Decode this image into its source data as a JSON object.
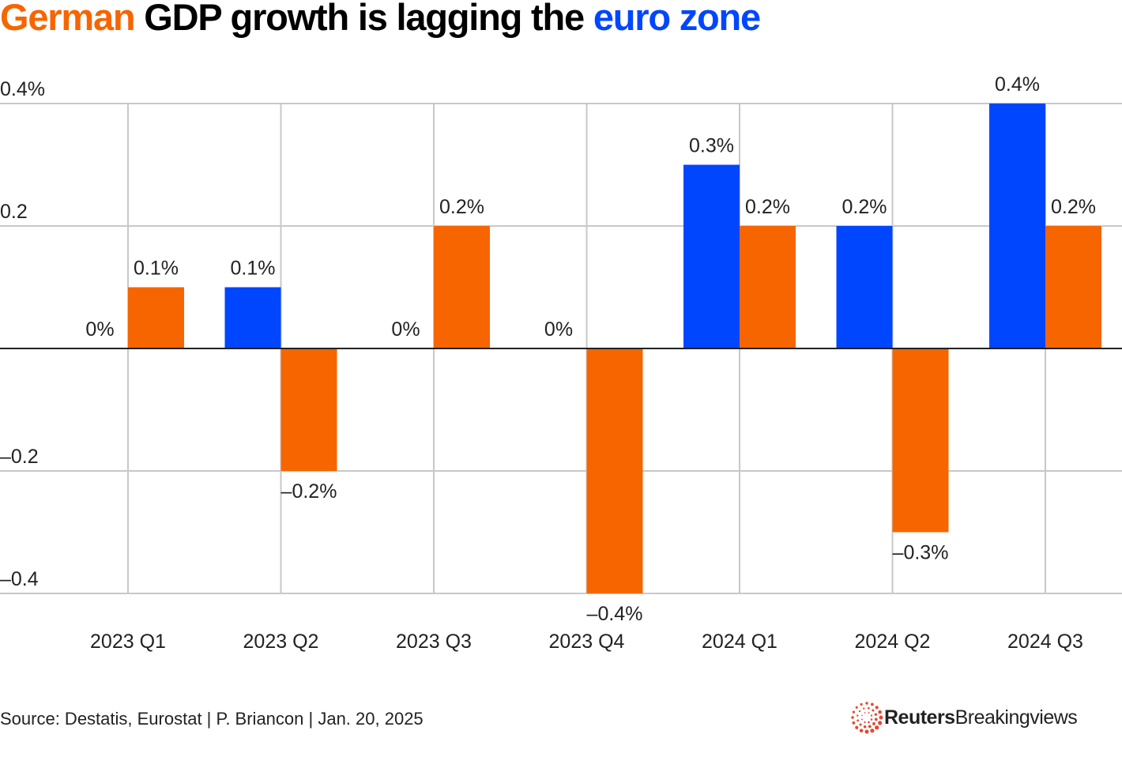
{
  "title": {
    "part1": "German",
    "part2": " GDP growth is lagging the ",
    "part3": "euro zone"
  },
  "colors": {
    "germany": "#f76501",
    "euro_zone": "#0046ff",
    "grid": "#c8c8c8",
    "zero_line": "#222222",
    "logo": "#e8452c"
  },
  "chart_data": {
    "type": "bar",
    "title": "German GDP growth is lagging the euro zone",
    "xlabel": "",
    "ylabel": "",
    "categories": [
      "2023 Q1",
      "2023 Q2",
      "2023 Q3",
      "2023 Q4",
      "2024 Q1",
      "2024 Q2",
      "2024 Q3"
    ],
    "series": [
      {
        "name": "Euro zone",
        "color": "#0046ff",
        "values": [
          0,
          0.1,
          0,
          0,
          0.3,
          0.2,
          0.4
        ],
        "labels": [
          "0%",
          "0.1%",
          "0%",
          "0%",
          "0.3%",
          "0.2%",
          "0.4%"
        ]
      },
      {
        "name": "Germany",
        "color": "#f76501",
        "values": [
          0.1,
          -0.2,
          0.2,
          -0.4,
          0.2,
          -0.3,
          0.2
        ],
        "labels": [
          "0.1%",
          "–0.2%",
          "0.2%",
          "–0.4%",
          "0.2%",
          "–0.3%",
          "0.2%"
        ]
      }
    ],
    "ylim": [
      -0.4,
      0.4
    ],
    "yticks": [
      0.4,
      0.2,
      -0.2,
      -0.4
    ],
    "ytick_labels": [
      "0.4%",
      "0.2",
      "–0.2",
      "–0.4"
    ],
    "grid": true,
    "legend": "title (color-coded words)"
  },
  "footer": {
    "source": "Source: Destatis, Eurostat | P. Briancon | Jan. 20, 2025",
    "logo_bold": "Reuters",
    "logo_regular": "Breakingviews"
  }
}
